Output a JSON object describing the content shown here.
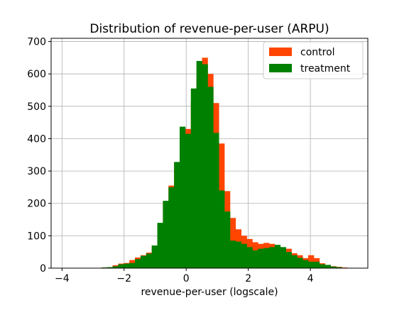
{
  "chart_data": {
    "type": "bar",
    "subtype": "histogram-overlay",
    "title": "Distribution of revenue-per-user (ARPU)",
    "xlabel": "revenue-per-user (logscale)",
    "ylabel": "",
    "xlim": [
      -4.35,
      5.85
    ],
    "ylim": [
      0,
      710
    ],
    "xticks": [
      -4,
      -2,
      0,
      2,
      4
    ],
    "xtick_labels": [
      "−4",
      "−2",
      "0",
      "2",
      "4"
    ],
    "yticks": [
      0,
      100,
      200,
      300,
      400,
      500,
      600,
      700
    ],
    "ytick_labels": [
      "0",
      "100",
      "200",
      "300",
      "400",
      "500",
      "600",
      "700"
    ],
    "grid": true,
    "legend_position": "top-right",
    "series": [
      {
        "name": "control",
        "color": "#ff4500",
        "bin_width": 0.18,
        "bins": [
          [
            -3.09,
            1
          ],
          [
            -2.91,
            1
          ],
          [
            -2.73,
            2
          ],
          [
            -2.55,
            3
          ],
          [
            -2.37,
            9
          ],
          [
            -2.19,
            14
          ],
          [
            -2.01,
            16
          ],
          [
            -1.83,
            25
          ],
          [
            -1.65,
            33
          ],
          [
            -1.47,
            40
          ],
          [
            -1.29,
            48
          ],
          [
            -1.11,
            68
          ],
          [
            -0.93,
            135
          ],
          [
            -0.75,
            205
          ],
          [
            -0.57,
            255
          ],
          [
            -0.39,
            325
          ],
          [
            -0.21,
            400
          ],
          [
            -0.03,
            430
          ],
          [
            0.15,
            515
          ],
          [
            0.33,
            585
          ],
          [
            0.51,
            650
          ],
          [
            0.69,
            600
          ],
          [
            0.87,
            510
          ],
          [
            1.05,
            385
          ],
          [
            1.23,
            238
          ],
          [
            1.41,
            155
          ],
          [
            1.59,
            120
          ],
          [
            1.77,
            100
          ],
          [
            1.95,
            90
          ],
          [
            2.13,
            80
          ],
          [
            2.31,
            75
          ],
          [
            2.49,
            78
          ],
          [
            2.67,
            75
          ],
          [
            2.85,
            68
          ],
          [
            3.03,
            64
          ],
          [
            3.21,
            60
          ],
          [
            3.39,
            46
          ],
          [
            3.57,
            40
          ],
          [
            3.75,
            31
          ],
          [
            3.93,
            40
          ],
          [
            4.11,
            31
          ],
          [
            4.29,
            15
          ],
          [
            4.47,
            10
          ],
          [
            4.65,
            6
          ],
          [
            4.83,
            4
          ],
          [
            5.01,
            2
          ],
          [
            5.19,
            1
          ]
        ]
      },
      {
        "name": "treatment",
        "color": "#008000",
        "bin_width": 0.18,
        "bins": [
          [
            -3.09,
            1
          ],
          [
            -2.91,
            1
          ],
          [
            -2.73,
            2
          ],
          [
            -2.55,
            3
          ],
          [
            -2.37,
            6
          ],
          [
            -2.19,
            12
          ],
          [
            -2.01,
            14
          ],
          [
            -1.83,
            16
          ],
          [
            -1.65,
            28
          ],
          [
            -1.47,
            38
          ],
          [
            -1.29,
            45
          ],
          [
            -1.11,
            70
          ],
          [
            -0.93,
            140
          ],
          [
            -0.75,
            208
          ],
          [
            -0.57,
            250
          ],
          [
            -0.39,
            328
          ],
          [
            -0.21,
            437
          ],
          [
            -0.03,
            415
          ],
          [
            0.15,
            555
          ],
          [
            0.33,
            640
          ],
          [
            0.51,
            630
          ],
          [
            0.69,
            560
          ],
          [
            0.87,
            418
          ],
          [
            1.05,
            240
          ],
          [
            1.23,
            175
          ],
          [
            1.41,
            85
          ],
          [
            1.59,
            82
          ],
          [
            1.77,
            75
          ],
          [
            1.95,
            65
          ],
          [
            2.13,
            55
          ],
          [
            2.31,
            60
          ],
          [
            2.49,
            62
          ],
          [
            2.67,
            65
          ],
          [
            2.85,
            72
          ],
          [
            3.03,
            65
          ],
          [
            3.21,
            50
          ],
          [
            3.39,
            40
          ],
          [
            3.57,
            32
          ],
          [
            3.75,
            25
          ],
          [
            3.93,
            20
          ],
          [
            4.11,
            20
          ],
          [
            4.29,
            12
          ],
          [
            4.47,
            10
          ],
          [
            4.65,
            5
          ],
          [
            4.83,
            3
          ],
          [
            5.01,
            1
          ]
        ]
      }
    ]
  }
}
